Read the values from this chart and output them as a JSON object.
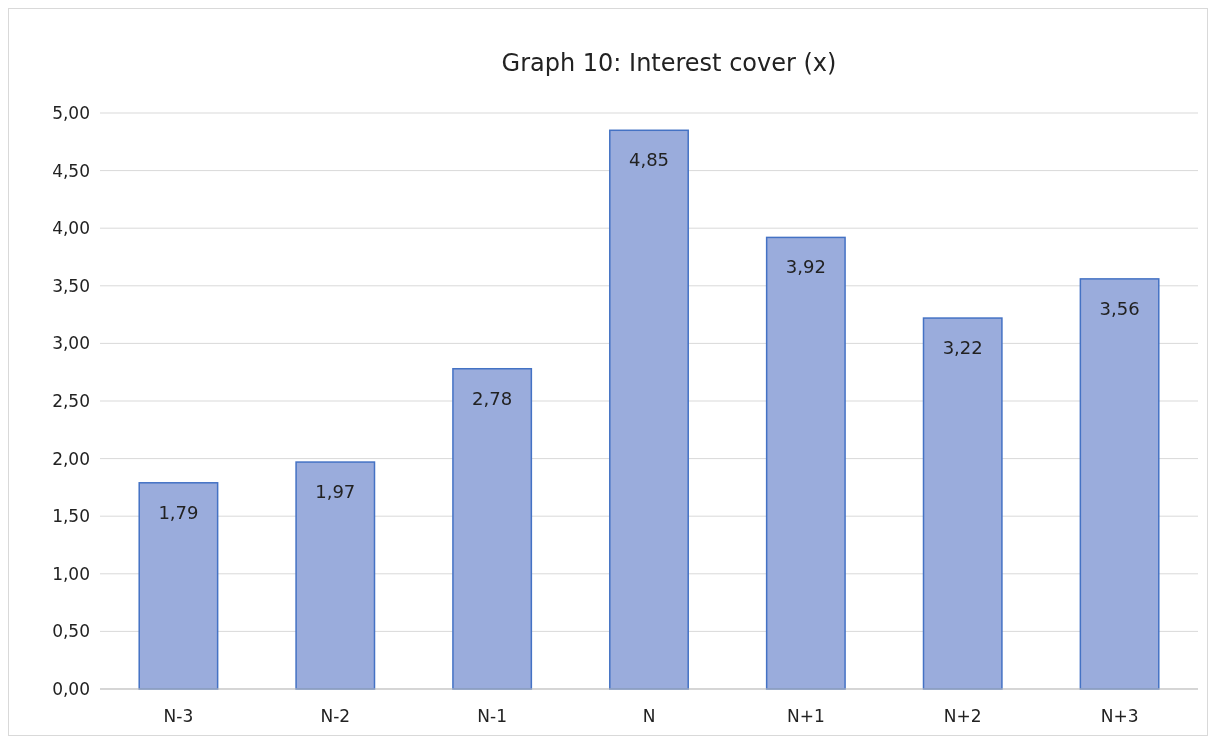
{
  "chart_data": {
    "type": "bar",
    "title": "Graph 10: Interest cover (x)",
    "categories": [
      "N-3",
      "N-2",
      "N-1",
      "N",
      "N+1",
      "N+2",
      "N+3"
    ],
    "values": [
      1.79,
      1.97,
      2.78,
      4.85,
      3.92,
      3.22,
      3.56
    ],
    "value_labels": [
      "1,79",
      "1,97",
      "2,78",
      "4,85",
      "3,92",
      "3,22",
      "3,56"
    ],
    "color": "#9aacdc",
    "ylim": [
      0,
      5
    ],
    "yticks": [
      {
        "value": 0,
        "label": "0,00"
      },
      {
        "value": 0.5,
        "label": "0,50"
      },
      {
        "value": 1,
        "label": "1,00"
      },
      {
        "value": 1.5,
        "label": "1,50"
      },
      {
        "value": 2,
        "label": "2,00"
      },
      {
        "value": 2.5,
        "label": "2,50"
      },
      {
        "value": 3,
        "label": "3,00"
      },
      {
        "value": 3.5,
        "label": "3,50"
      },
      {
        "value": 4,
        "label": "4,00"
      },
      {
        "value": 4.5,
        "label": "4,50"
      },
      {
        "value": 5,
        "label": "5,00"
      }
    ],
    "grid": "y"
  }
}
